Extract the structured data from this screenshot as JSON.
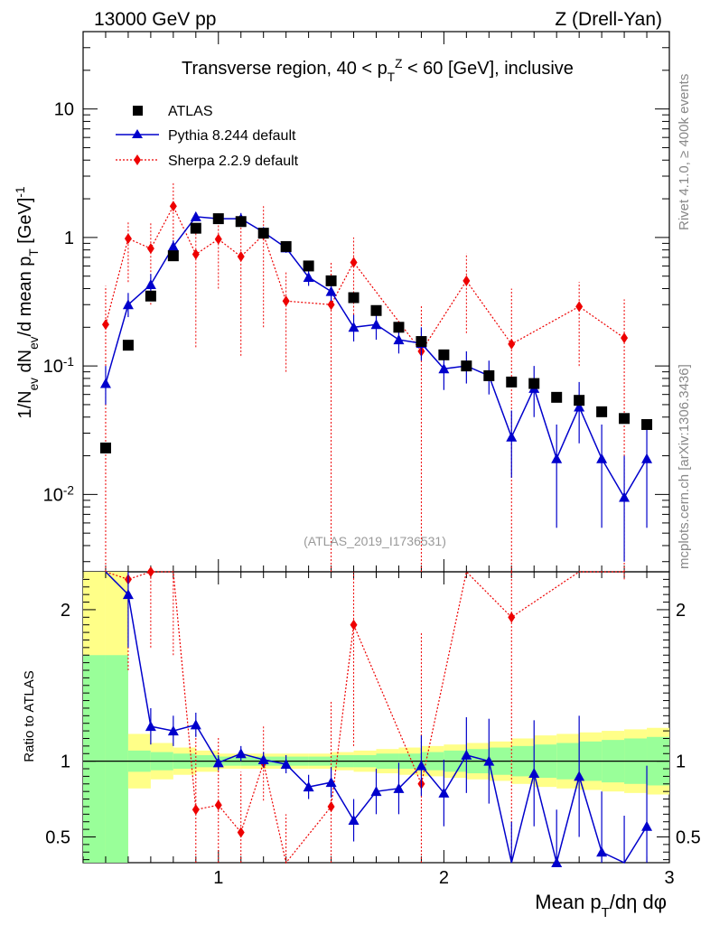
{
  "header": {
    "left": "13000 GeV pp",
    "right": "Z (Drell-Yan)"
  },
  "side_labels": {
    "rivet": "Rivet 4.1.0, ≥ 400k events",
    "mcplots": "mcplots.cern.ch [arXiv:1306.3436]"
  },
  "chart_data": {
    "type": "scatter",
    "title": "Transverse region, 40 < p_T^Z < 60 [GeV], inclusive",
    "analysis_label": "(ATLAS_2019_I1736531)",
    "xlabel": "Mean p_T/dη dφ",
    "ylabel": "1/N_ev dN_ev/d mean p_T [GeV]^-1",
    "ratio_ylabel": "Ratio to ATLAS",
    "xlim": [
      0.4,
      3.0
    ],
    "ylim": [
      0.0025,
      40
    ],
    "yscale": "log",
    "ratio_ylim": [
      0.33,
      2.25
    ],
    "x_ticks": [
      1,
      2,
      3
    ],
    "y_ticks": [
      {
        "value": 0.01,
        "label": "10^-2"
      },
      {
        "value": 0.1,
        "label": "10^-1"
      },
      {
        "value": 1,
        "label": "1"
      },
      {
        "value": 10,
        "label": "10"
      }
    ],
    "ratio_ticks": [
      0.5,
      1,
      2
    ],
    "legend": [
      {
        "name": "ATLAS",
        "color": "#000000",
        "marker": "square"
      },
      {
        "name": "Pythia 8.244 default",
        "color": "#0000cc",
        "marker": "triangle"
      },
      {
        "name": "Sherpa 2.2.9 default",
        "color": "#ee0000",
        "marker": "diamond"
      }
    ],
    "x": [
      0.5,
      0.6,
      0.7,
      0.8,
      0.9,
      1.0,
      1.1,
      1.2,
      1.3,
      1.4,
      1.5,
      1.6,
      1.7,
      1.8,
      1.9,
      2.0,
      2.1,
      2.2,
      2.3,
      2.4,
      2.5,
      2.6,
      2.7,
      2.8,
      2.9
    ],
    "atlas": [
      0.023,
      0.145,
      0.35,
      0.72,
      1.18,
      1.4,
      1.33,
      1.08,
      0.85,
      0.6,
      0.46,
      0.34,
      0.27,
      0.2,
      0.155,
      0.122,
      0.1,
      0.084,
      0.075,
      0.073,
      0.057,
      0.054,
      0.044,
      0.039,
      0.035
    ],
    "pythia": [
      0.073,
      0.3,
      0.43,
      0.85,
      1.45,
      1.4,
      1.4,
      1.1,
      0.83,
      0.49,
      0.38,
      0.2,
      0.21,
      0.16,
      0.15,
      0.095,
      0.1,
      0.084,
      0.028,
      0.067,
      0.019,
      0.048,
      0.019,
      0.0095,
      0.019
    ],
    "pythia_err_low": [
      0.05,
      0.24,
      0.36,
      0.78,
      1.35,
      1.32,
      1.3,
      1.0,
      0.76,
      0.42,
      0.32,
      0.155,
      0.16,
      0.125,
      0.11,
      0.065,
      0.073,
      0.06,
      0.0135,
      0.04,
      0.0055,
      0.025,
      0.0055,
      0.003,
      0.0055
    ],
    "pythia_err_high": [
      0.1,
      0.37,
      0.52,
      0.95,
      1.56,
      1.5,
      1.55,
      1.2,
      0.92,
      0.57,
      0.45,
      0.25,
      0.26,
      0.2,
      0.2,
      0.125,
      0.13,
      0.11,
      0.045,
      0.1,
      0.035,
      0.075,
      0.035,
      0.02,
      0.035
    ],
    "sherpa_x": [
      0.5,
      0.6,
      0.7,
      0.8,
      0.9,
      1.0,
      1.1,
      1.2,
      1.3,
      1.5,
      1.6,
      1.9,
      2.1,
      2.3,
      2.6,
      2.8
    ],
    "sherpa": [
      0.21,
      0.98,
      0.82,
      1.75,
      0.74,
      0.97,
      0.71,
      1.05,
      0.32,
      0.3,
      0.64,
      0.13,
      0.46,
      0.148,
      0.29,
      0.165
    ],
    "sherpa_err_low": [
      0.002,
      0.45,
      0.3,
      0.85,
      0.14,
      0.4,
      0.12,
      0.2,
      0.09,
      0.002,
      0.25,
      0.002,
      0.18,
      0.002,
      0.1,
      0.002
    ],
    "sherpa_err_high": [
      0.42,
      1.35,
      1.3,
      2.7,
      1.25,
      1.55,
      1.3,
      1.8,
      0.55,
      0.65,
      1.0,
      0.3,
      0.75,
      0.4,
      0.45,
      0.33
    ],
    "pythia_ratio": [
      3.2,
      2.1,
      1.23,
      1.2,
      1.24,
      0.99,
      1.05,
      1.01,
      0.98,
      0.83,
      0.86,
      0.61,
      0.8,
      0.82,
      0.97,
      0.79,
      1.04,
      1.0,
      0.3,
      0.92,
      0.33,
      0.9,
      0.4,
      0.24,
      0.57
    ],
    "pythia_ratio_err": [
      0.5,
      0.35,
      0.12,
      0.1,
      0.08,
      0.05,
      0.05,
      0.05,
      0.06,
      0.08,
      0.1,
      0.14,
      0.15,
      0.17,
      0.2,
      0.22,
      0.25,
      0.28,
      0.3,
      0.35,
      0.35,
      0.4,
      0.4,
      0.4,
      0.4
    ],
    "sherpa_ratio": [
      9.0,
      2.2,
      2.25,
      2.3,
      0.68,
      0.71,
      0.53,
      0.99,
      0.3,
      0.7,
      1.9,
      0.85,
      4.5,
      1.95,
      5.4,
      4.2
    ],
    "sherpa_ratio_err": [
      2.0,
      0.6,
      0.5,
      0.6,
      0.5,
      0.45,
      0.4,
      0.25,
      0.35,
      0.7,
      0.8,
      1.0,
      2.0,
      2.0,
      2.0,
      2.0
    ],
    "atlas_band_edges": [
      0.4,
      0.5,
      0.6,
      0.7,
      0.8,
      0.9,
      1.0,
      1.1,
      1.2,
      1.3,
      1.4,
      1.5,
      1.6,
      1.7,
      1.8,
      1.9,
      2.0,
      2.1,
      2.2,
      2.3,
      2.4,
      2.5,
      2.6,
      2.7,
      2.8,
      2.9,
      3.0
    ],
    "atlas_band_stat": [
      0.7,
      0.7,
      0.07,
      0.06,
      0.05,
      0.04,
      0.03,
      0.03,
      0.03,
      0.03,
      0.03,
      0.04,
      0.04,
      0.05,
      0.05,
      0.06,
      0.07,
      0.08,
      0.09,
      0.1,
      0.11,
      0.12,
      0.13,
      0.14,
      0.15,
      0.16
    ],
    "atlas_band_total": [
      1.5,
      1.5,
      0.18,
      0.12,
      0.09,
      0.07,
      0.05,
      0.05,
      0.05,
      0.05,
      0.05,
      0.06,
      0.07,
      0.08,
      0.09,
      0.1,
      0.11,
      0.12,
      0.13,
      0.15,
      0.17,
      0.18,
      0.19,
      0.2,
      0.21,
      0.22
    ]
  }
}
